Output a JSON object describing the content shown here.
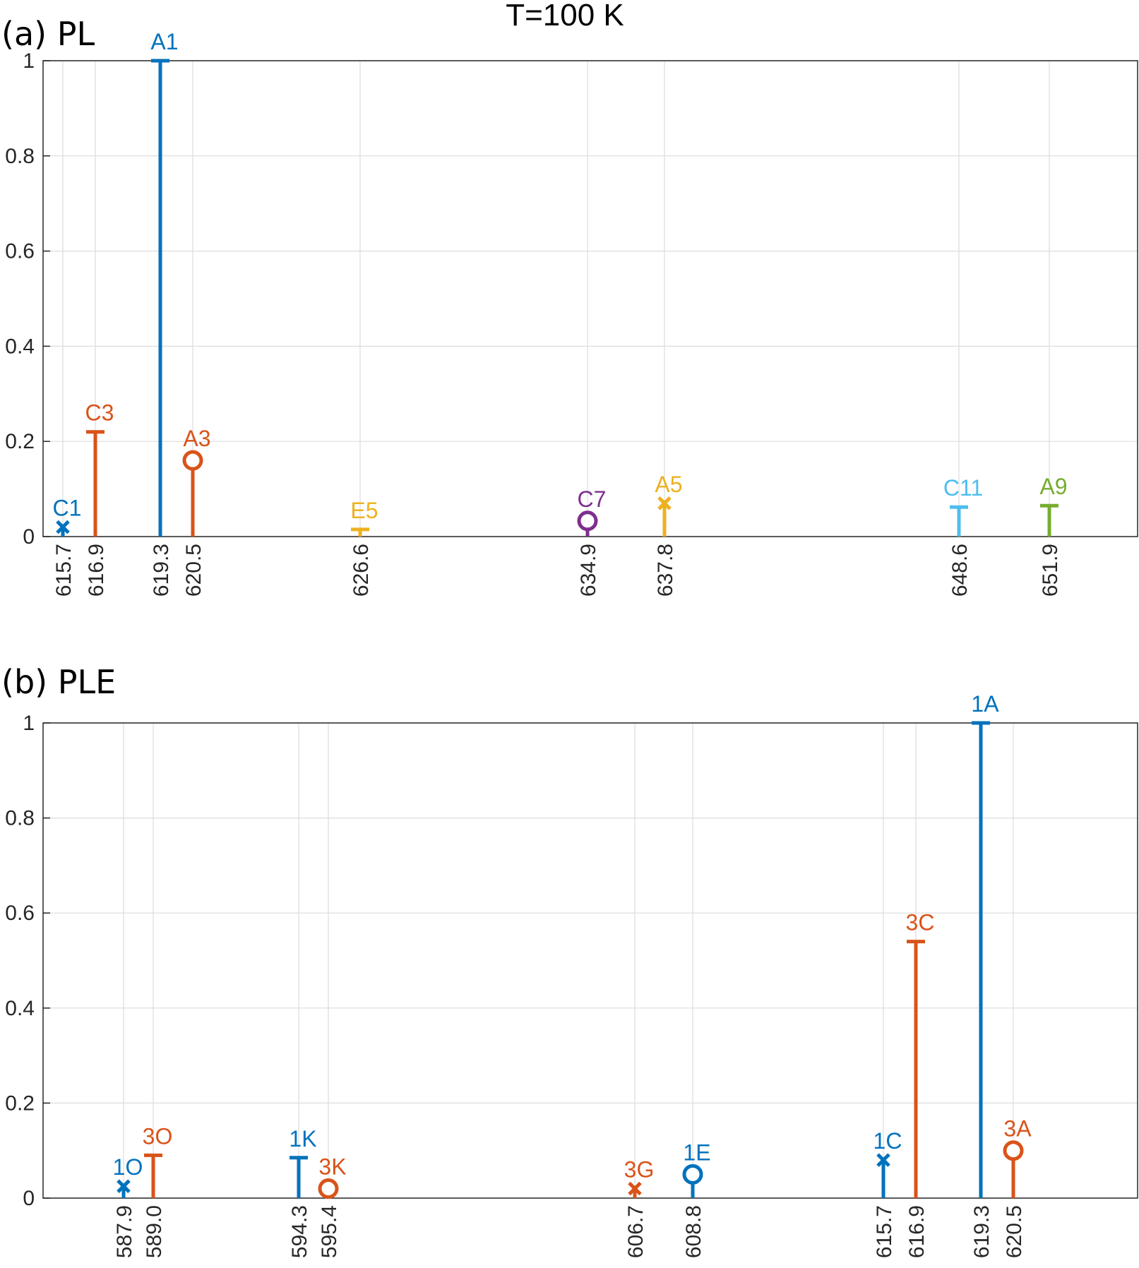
{
  "figure": {
    "title": "T=100 K"
  },
  "colors": {
    "blue": "#0072BD",
    "orange": "#D95319",
    "yellow": "#EDB120",
    "purple": "#7E2F8E",
    "green": "#77AC30",
    "lightblue": "#4DBEEE",
    "axis": "#262626",
    "grid": "#dcdcdc"
  },
  "chart_data": [
    {
      "type": "stem",
      "panel_label": "(a) PL",
      "title": "T=100 K",
      "xlabel": "",
      "ylabel": "",
      "ylim": [
        0,
        1
      ],
      "yticks": [
        "0",
        "0.2",
        "0.4",
        "0.6",
        "0.8",
        "1"
      ],
      "x_scale": "wavelength-ordered (non-uniform category positions)",
      "points": [
        {
          "x": 615.7,
          "x_label": "615.7",
          "value": 0.02,
          "label": "C1",
          "marker": "x",
          "color": "blue"
        },
        {
          "x": 616.9,
          "x_label": "616.9",
          "value": 0.22,
          "label": "C3",
          "marker": "bar",
          "color": "orange"
        },
        {
          "x": 619.3,
          "x_label": "619.3",
          "value": 1.0,
          "label": "A1",
          "marker": "bar",
          "color": "blue"
        },
        {
          "x": 620.5,
          "x_label": "620.5",
          "value": 0.16,
          "label": "A3",
          "marker": "o",
          "color": "orange"
        },
        {
          "x": 626.6,
          "x_label": "626.6",
          "value": 0.015,
          "label": "E5",
          "marker": "bar",
          "color": "yellow"
        },
        {
          "x": 634.9,
          "x_label": "634.9",
          "value": 0.033,
          "label": "C7",
          "marker": "o",
          "color": "purple"
        },
        {
          "x": 637.8,
          "x_label": "637.8",
          "value": 0.07,
          "label": "A5",
          "marker": "x",
          "color": "yellow"
        },
        {
          "x": 648.6,
          "x_label": "648.6",
          "value": 0.062,
          "label": "C11",
          "marker": "bar",
          "color": "lightblue"
        },
        {
          "x": 651.9,
          "x_label": "651.9",
          "value": 0.065,
          "label": "A9",
          "marker": "bar",
          "color": "green"
        }
      ]
    },
    {
      "type": "stem",
      "panel_label": "(b) PLE",
      "title": "",
      "xlabel": "",
      "ylabel": "",
      "ylim": [
        0,
        1
      ],
      "yticks": [
        "0",
        "0.2",
        "0.4",
        "0.6",
        "0.8",
        "1"
      ],
      "x_scale": "wavelength-ordered (non-uniform category positions)",
      "points": [
        {
          "x": 587.9,
          "x_label": "587.9",
          "value": 0.025,
          "label": "1O",
          "marker": "x",
          "color": "blue"
        },
        {
          "x": 589.0,
          "x_label": "589.0",
          "value": 0.09,
          "label": "3O",
          "marker": "bar",
          "color": "orange"
        },
        {
          "x": 594.3,
          "x_label": "594.3",
          "value": 0.085,
          "label": "1K",
          "marker": "bar",
          "color": "blue"
        },
        {
          "x": 595.4,
          "x_label": "595.4",
          "value": 0.02,
          "label": "3K",
          "marker": "o",
          "color": "orange"
        },
        {
          "x": 606.7,
          "x_label": "606.7",
          "value": 0.02,
          "label": "3G",
          "marker": "x",
          "color": "orange"
        },
        {
          "x": 608.8,
          "x_label": "608.8",
          "value": 0.05,
          "label": "1E",
          "marker": "o",
          "color": "blue"
        },
        {
          "x": 615.7,
          "x_label": "615.7",
          "value": 0.08,
          "label": "1C",
          "marker": "x",
          "color": "blue"
        },
        {
          "x": 616.9,
          "x_label": "616.9",
          "value": 0.54,
          "label": "3C",
          "marker": "bar",
          "color": "orange"
        },
        {
          "x": 619.3,
          "x_label": "619.3",
          "value": 1.0,
          "label": "1A",
          "marker": "bar",
          "color": "blue"
        },
        {
          "x": 620.5,
          "x_label": "620.5",
          "value": 0.1,
          "label": "3A",
          "marker": "o",
          "color": "orange"
        }
      ]
    }
  ]
}
